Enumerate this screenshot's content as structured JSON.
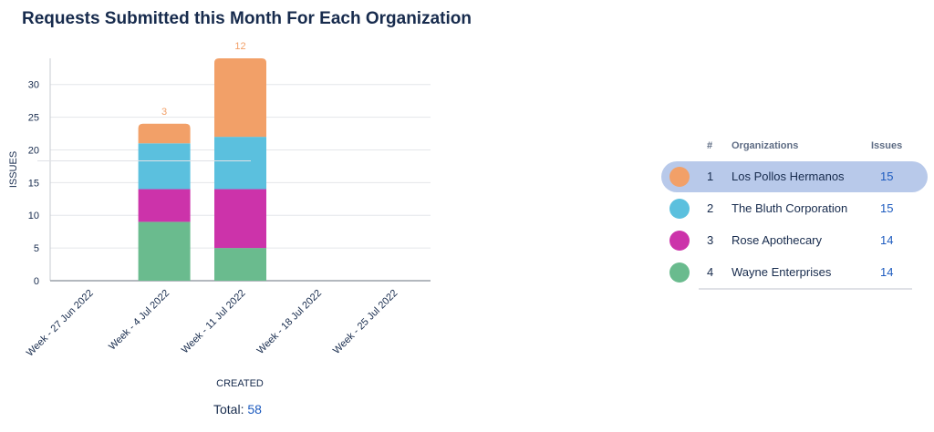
{
  "title": "Requests Submitted this Month For Each Organization",
  "chart_data": {
    "type": "bar",
    "stacked": true,
    "categories": [
      "Week - 27 Jun 2022",
      "Week - 4 Jul 2022",
      "Week - 11 Jul 2022",
      "Week - 18 Jul 2022",
      "Week - 25 Jul 2022"
    ],
    "series": [
      {
        "name": "Wayne Enterprises",
        "color": "#6abb8e",
        "values": [
          0,
          9,
          5,
          0,
          0
        ]
      },
      {
        "name": "Rose Apothecary",
        "color": "#cc33aa",
        "values": [
          0,
          5,
          9,
          0,
          0
        ]
      },
      {
        "name": "The Bluth Corporation",
        "color": "#5bc0de",
        "values": [
          0,
          7,
          8,
          0,
          0
        ]
      },
      {
        "name": "Los Pollos Hermanos",
        "color": "#f2a068",
        "values": [
          0,
          3,
          12,
          0,
          0
        ]
      }
    ],
    "data_labels": [
      "",
      "3",
      "12",
      "",
      ""
    ],
    "xlabel": "CREATED",
    "ylabel": "ISSUES",
    "yticks": [
      0,
      5,
      10,
      15,
      20,
      25,
      30
    ],
    "ylim": [
      0,
      34
    ]
  },
  "total": {
    "label": "Total:",
    "value": "58"
  },
  "legend": {
    "headers": {
      "num": "#",
      "org": "Organizations",
      "issues": "Issues"
    },
    "rows": [
      {
        "num": "1",
        "org": "Los Pollos Hermanos",
        "issues": "15",
        "color": "#f2a068",
        "selected": true
      },
      {
        "num": "2",
        "org": "The Bluth Corporation",
        "issues": "15",
        "color": "#5bc0de",
        "selected": false
      },
      {
        "num": "3",
        "org": "Rose Apothecary",
        "issues": "14",
        "color": "#cc33aa",
        "selected": false
      },
      {
        "num": "4",
        "org": "Wayne Enterprises",
        "issues": "14",
        "color": "#6abb8e",
        "selected": false
      }
    ]
  }
}
